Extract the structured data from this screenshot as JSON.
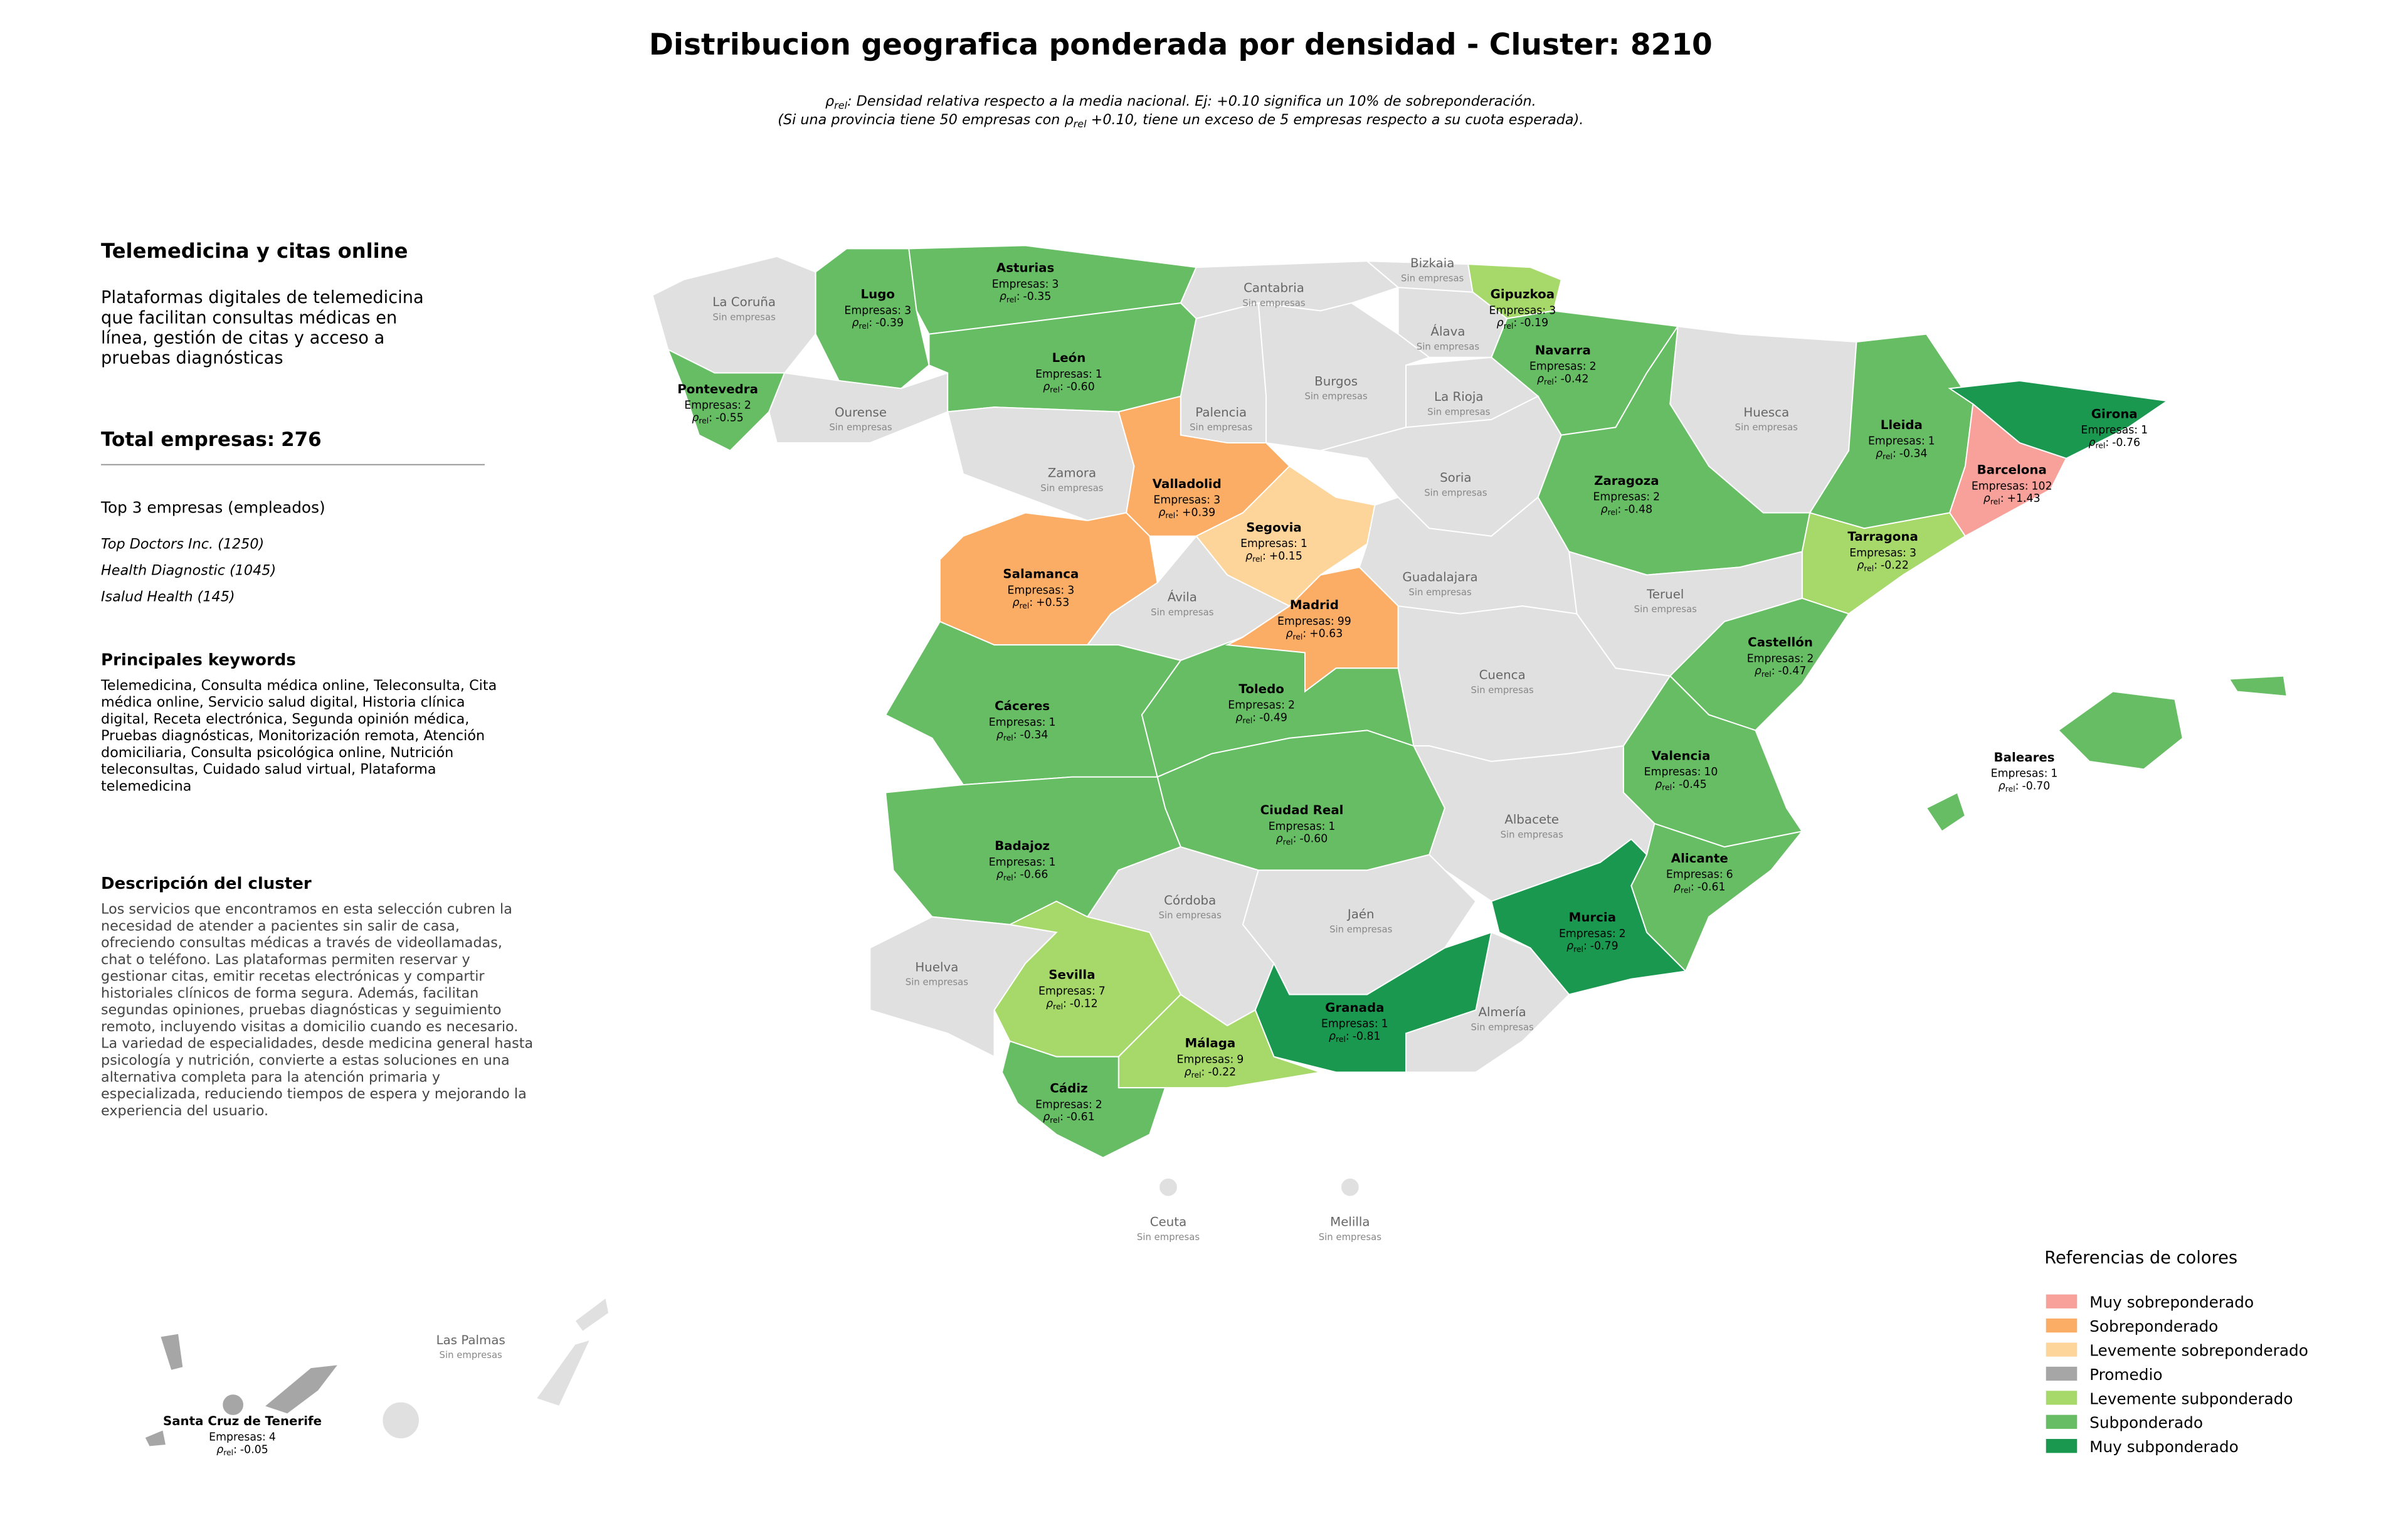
{
  "title": "Distribucion geografica ponderada por densidad - Cluster: 8210",
  "subtitle_lines": [
    [
      {
        "text": "ρ"
      },
      {
        "sub": "rel"
      },
      {
        "text": ": Densidad relativa respecto a la media nacional. Ej: +0.10 significa un 10% de sobreponderación."
      }
    ],
    [
      {
        "text": "(Si una provincia tiene 50 empresas con "
      },
      {
        "text": "ρ"
      },
      {
        "sub": "rel"
      },
      {
        "text": " +0.10, tiene un exceso de 5 empresas respecto a su cuota esperada)."
      }
    ]
  ],
  "sidebar": {
    "heading": "Telemedicina y citas online",
    "intro_lines": [
      "Plataformas digitales de telemedicina",
      "que facilitan consultas médicas en",
      "línea, gestión de citas y acceso a",
      "pruebas diagnósticas"
    ],
    "total_label": "Total empresas:",
    "total": 276,
    "top_heading": "Top 3 empresas (empleados)",
    "top_companies": [
      "Top Doctors Inc. (1250)",
      "Health Diagnostic (1045)",
      "Isalud Health (145)"
    ],
    "keywords_heading": "Principales keywords",
    "keywords_lines": [
      "Telemedicina, Consulta médica online, Teleconsulta, Cita",
      "médica online, Servicio salud digital, Historia clínica",
      "digital, Receta electrónica, Segunda opinión médica,",
      "Pruebas diagnósticas, Monitorización remota, Atención",
      "domiciliaria, Consulta psicológica online, Nutrición",
      "teleconsultas, Cuidado salud virtual, Plataforma",
      "telemedicina"
    ],
    "description_heading": "Descripción del cluster",
    "description_lines": [
      "Los servicios que encontramos en esta selección cubren la",
      "necesidad de atender a pacientes sin salir de casa,",
      "ofreciendo consultas médicas a través de videollamadas,",
      "chat o teléfono. Las plataformas permiten reservar y",
      "gestionar citas, emitir recetas electrónicas y compartir",
      "historiales clínicos de forma segura. Además, facilitan",
      "segundas opiniones, pruebas diagnósticas y seguimiento",
      "remoto, incluyendo visitas a domicilio cuando es necesario.",
      "La variedad de especialidades, desde medicina general hasta",
      "psicología y nutrición, convierte a estas soluciones en una",
      "alternativa completa para la atención primaria y",
      "especializada, reduciendo tiempos de espera y mejorando la",
      "experiencia del usuario."
    ]
  },
  "labels": {
    "companies": "Empresas:",
    "rho": "ρ",
    "rho_sub": "rel",
    "rho_sep": ":",
    "no_companies": "Sin empresas"
  },
  "no_data_color": "#e0e0e0",
  "legend": {
    "title": "Referencias de colores",
    "entries": [
      {
        "name": "Muy sobreponderado",
        "color": "#f8a19a"
      },
      {
        "name": "Sobreponderado",
        "color": "#fbad66"
      },
      {
        "name": "Levemente sobreponderado",
        "color": "#fdd49a"
      },
      {
        "name": "Promedio",
        "color": "#a6a6a6"
      },
      {
        "name": "Levemente subponderado",
        "color": "#a6d96a"
      },
      {
        "name": "Subponderado",
        "color": "#66bd63"
      },
      {
        "name": "Muy subponderado",
        "color": "#1a9850"
      }
    ]
  },
  "provinces": [
    {
      "name": "La Coruña"
    },
    {
      "name": "Lugo",
      "companies": 3,
      "rho": -0.39,
      "rho_label": "-0.39",
      "category": 5
    },
    {
      "name": "Asturias",
      "companies": 3,
      "rho": -0.35,
      "rho_label": "-0.35",
      "category": 5
    },
    {
      "name": "Cantabria"
    },
    {
      "name": "Bizkaia"
    },
    {
      "name": "Gipuzkoa",
      "companies": 3,
      "rho": -0.19,
      "rho_label": "-0.19",
      "category": 4
    },
    {
      "name": "Álava"
    },
    {
      "name": "Navarra",
      "companies": 2,
      "rho": -0.42,
      "rho_label": "-0.42",
      "category": 5
    },
    {
      "name": "Pontevedra",
      "companies": 2,
      "rho": -0.55,
      "rho_label": "-0.55",
      "category": 5
    },
    {
      "name": "Ourense"
    },
    {
      "name": "León",
      "companies": 1,
      "rho": -0.6,
      "rho_label": "-0.60",
      "category": 5
    },
    {
      "name": "Palencia"
    },
    {
      "name": "Burgos"
    },
    {
      "name": "La Rioja"
    },
    {
      "name": "Huesca"
    },
    {
      "name": "Lleida",
      "companies": 1,
      "rho": -0.34,
      "rho_label": "-0.34",
      "category": 5
    },
    {
      "name": "Girona",
      "companies": 1,
      "rho": -0.76,
      "rho_label": "-0.76",
      "category": 6
    },
    {
      "name": "Barcelona",
      "companies": 102,
      "rho": 1.43,
      "rho_label": "+1.43",
      "category": 0
    },
    {
      "name": "Zamora"
    },
    {
      "name": "Valladolid",
      "companies": 3,
      "rho": 0.39,
      "rho_label": "+0.39",
      "category": 1
    },
    {
      "name": "Soria"
    },
    {
      "name": "Zaragoza",
      "companies": 2,
      "rho": -0.48,
      "rho_label": "-0.48",
      "category": 5
    },
    {
      "name": "Segovia",
      "companies": 1,
      "rho": 0.15,
      "rho_label": "+0.15",
      "category": 2
    },
    {
      "name": "Tarragona",
      "companies": 3,
      "rho": -0.22,
      "rho_label": "-0.22",
      "category": 4
    },
    {
      "name": "Salamanca",
      "companies": 3,
      "rho": 0.53,
      "rho_label": "+0.53",
      "category": 1
    },
    {
      "name": "Ávila"
    },
    {
      "name": "Guadalajara"
    },
    {
      "name": "Madrid",
      "companies": 99,
      "rho": 0.63,
      "rho_label": "+0.63",
      "category": 1
    },
    {
      "name": "Teruel"
    },
    {
      "name": "Castellón",
      "companies": 2,
      "rho": -0.47,
      "rho_label": "-0.47",
      "category": 5
    },
    {
      "name": "Cáceres",
      "companies": 1,
      "rho": -0.34,
      "rho_label": "-0.34",
      "category": 5
    },
    {
      "name": "Toledo",
      "companies": 2,
      "rho": -0.49,
      "rho_label": "-0.49",
      "category": 5
    },
    {
      "name": "Cuenca"
    },
    {
      "name": "Baleares",
      "companies": 1,
      "rho": -0.7,
      "rho_label": "-0.70",
      "category": 5
    },
    {
      "name": "Valencia",
      "companies": 10,
      "rho": -0.45,
      "rho_label": "-0.45",
      "category": 5
    },
    {
      "name": "Ciudad Real",
      "companies": 1,
      "rho": -0.6,
      "rho_label": "-0.60",
      "category": 5
    },
    {
      "name": "Albacete"
    },
    {
      "name": "Badajoz",
      "companies": 1,
      "rho": -0.66,
      "rho_label": "-0.66",
      "category": 5
    },
    {
      "name": "Alicante",
      "companies": 6,
      "rho": -0.61,
      "rho_label": "-0.61",
      "category": 5
    },
    {
      "name": "Córdoba"
    },
    {
      "name": "Jaén"
    },
    {
      "name": "Murcia",
      "companies": 2,
      "rho": -0.79,
      "rho_label": "-0.79",
      "category": 6
    },
    {
      "name": "Huelva"
    },
    {
      "name": "Sevilla",
      "companies": 7,
      "rho": -0.12,
      "rho_label": "-0.12",
      "category": 4
    },
    {
      "name": "Granada",
      "companies": 1,
      "rho": -0.81,
      "rho_label": "-0.81",
      "category": 6
    },
    {
      "name": "Almería"
    },
    {
      "name": "Málaga",
      "companies": 9,
      "rho": -0.22,
      "rho_label": "-0.22",
      "category": 4
    },
    {
      "name": "Cádiz",
      "companies": 2,
      "rho": -0.61,
      "rho_label": "-0.61",
      "category": 5
    },
    {
      "name": "Ceuta"
    },
    {
      "name": "Melilla"
    },
    {
      "name": "Las Palmas"
    },
    {
      "name": "Santa Cruz de Tenerife",
      "companies": 4,
      "rho": -0.05,
      "rho_label": "-0.05",
      "category": 3
    }
  ]
}
